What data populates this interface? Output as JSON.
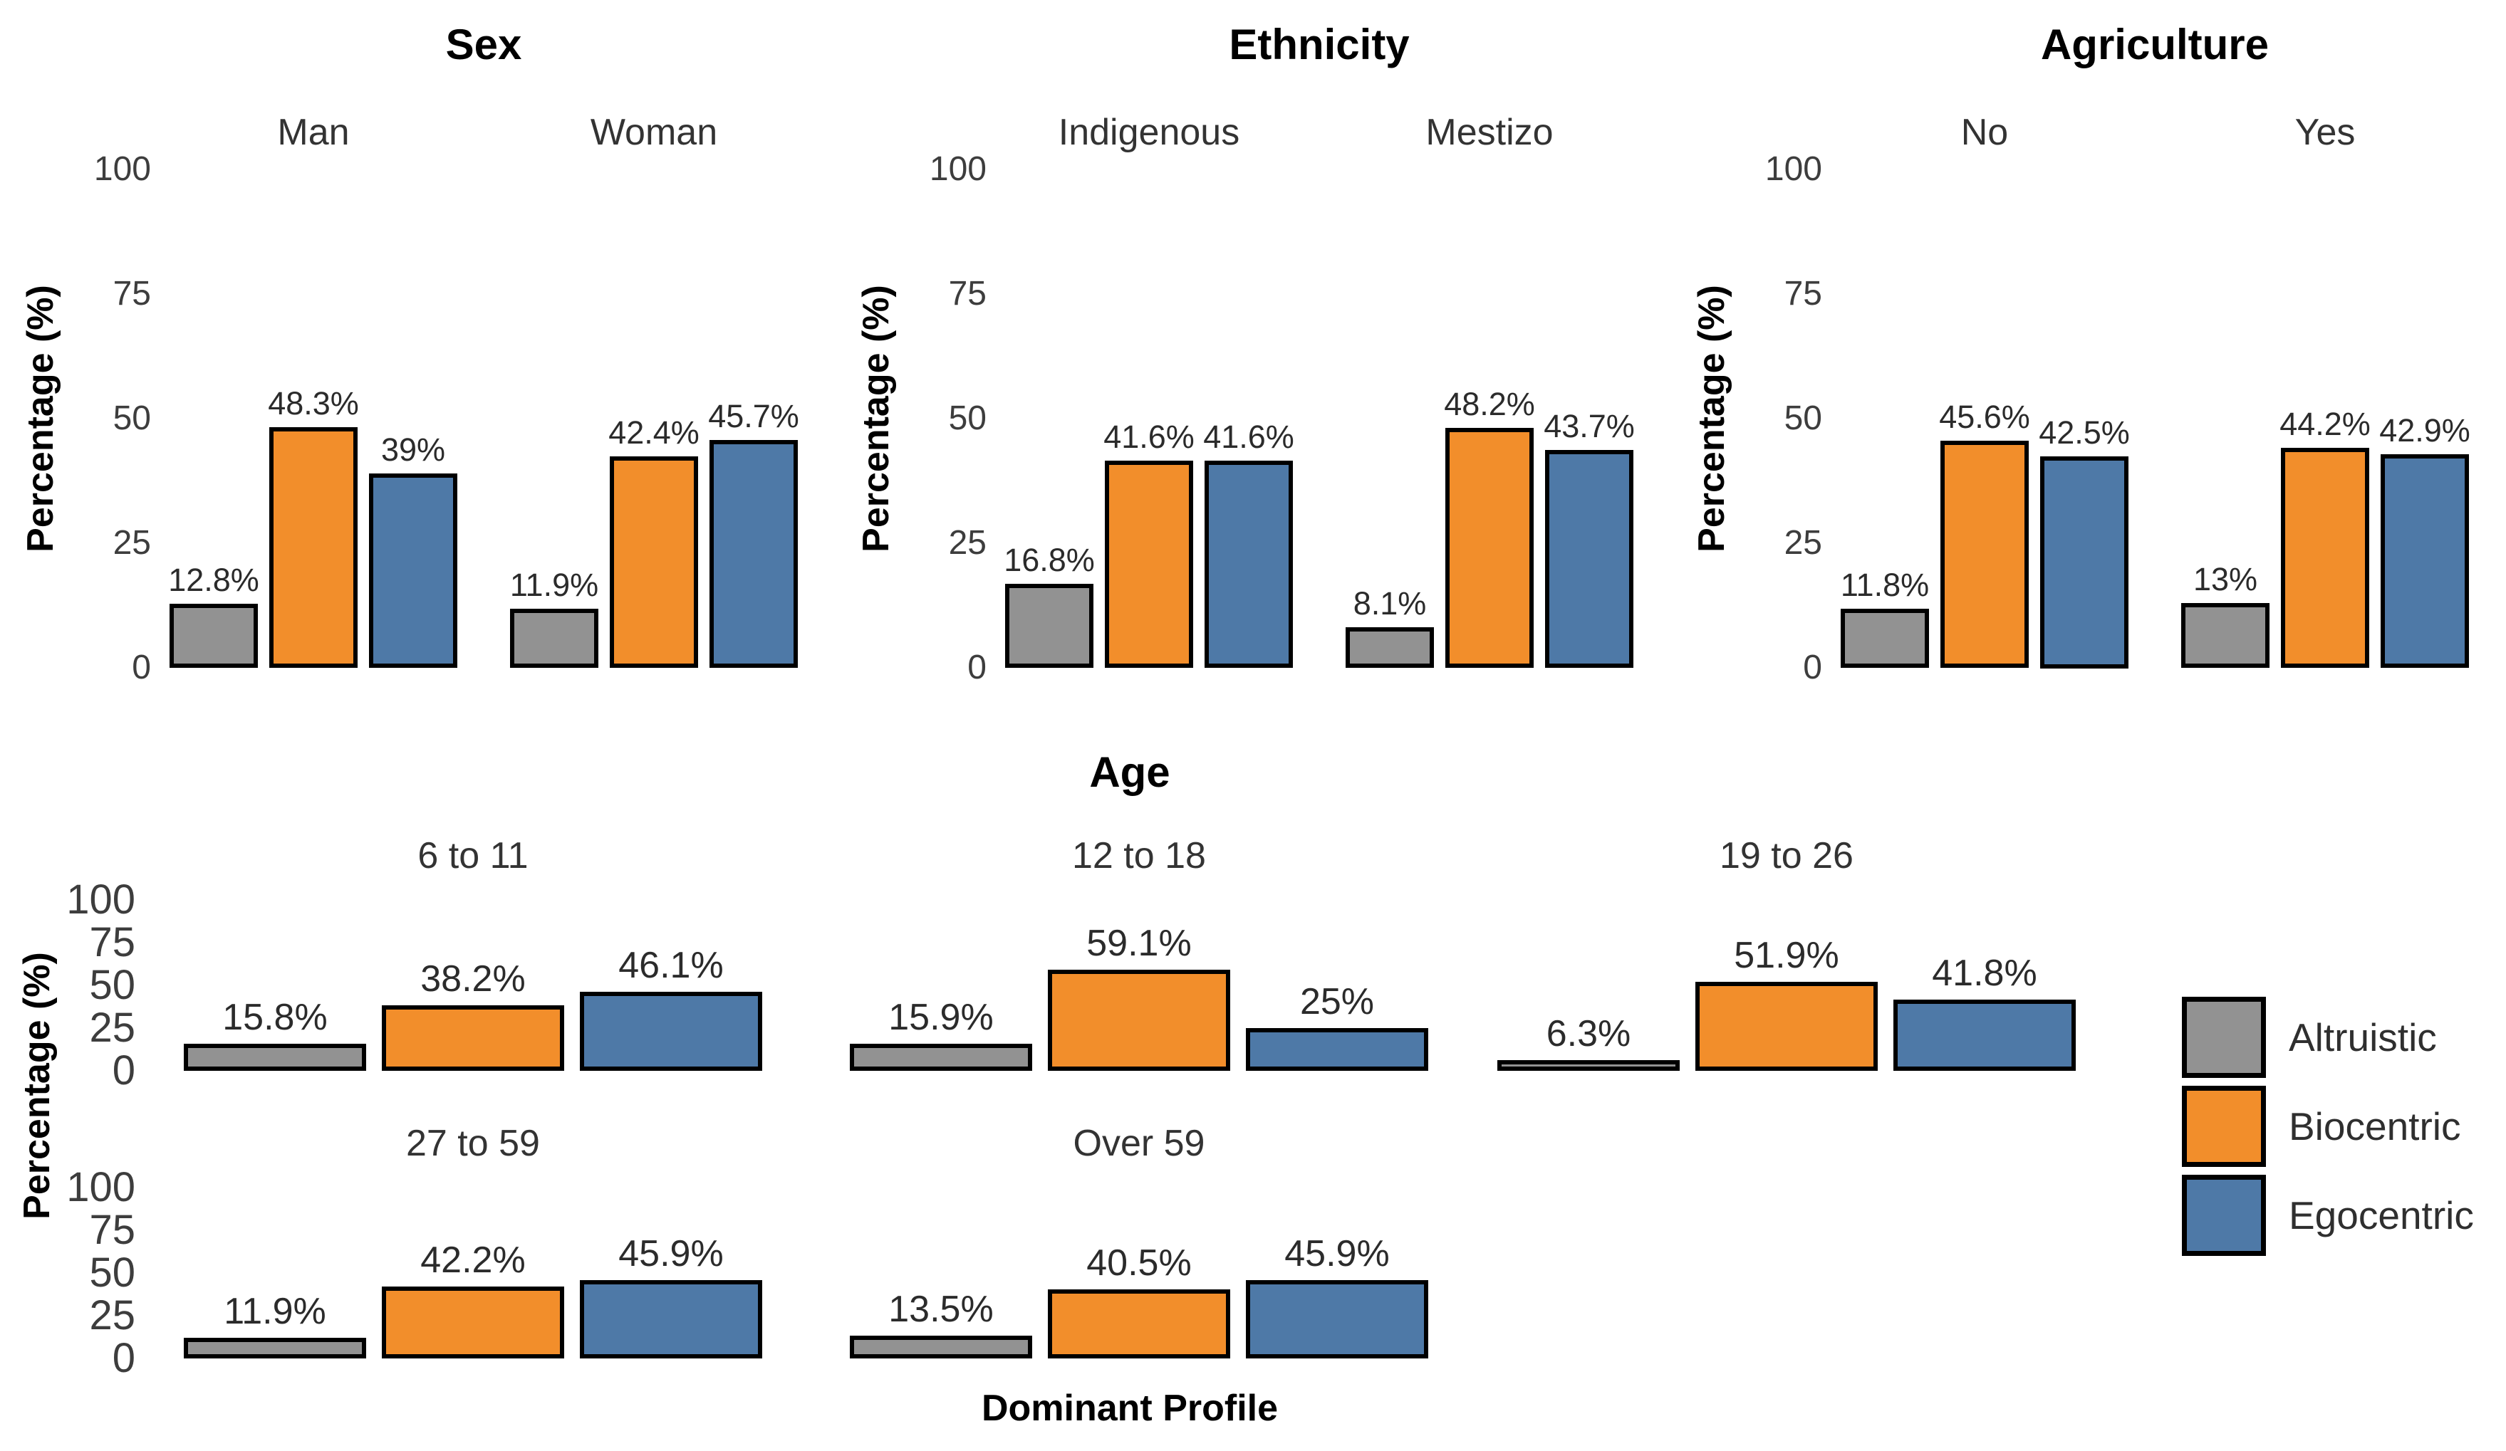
{
  "chart_data": {
    "type": "bar",
    "ylabel": "Percentage (%)",
    "xlabel": "Dominant Profile",
    "ylim": [
      0,
      100
    ],
    "yticks": [
      0,
      25,
      50,
      75,
      100
    ],
    "grid": false,
    "legend_position": "right",
    "series": [
      {
        "name": "Altruistic",
        "color": "#929292"
      },
      {
        "name": "Biocentric",
        "color": "#F28E2B"
      },
      {
        "name": "Egocentric",
        "color": "#4E79A7"
      }
    ],
    "bar_border_color": "#000000",
    "facets": [
      {
        "title": "Sex",
        "groups": [
          {
            "label": "Man",
            "values": [
              12.8,
              48.3,
              39.0
            ],
            "value_labels": [
              "12.8%",
              "48.3%",
              "39%"
            ]
          },
          {
            "label": "Woman",
            "values": [
              11.9,
              42.4,
              45.7
            ],
            "value_labels": [
              "11.9%",
              "42.4%",
              "45.7%"
            ]
          }
        ]
      },
      {
        "title": "Ethnicity",
        "groups": [
          {
            "label": "Indigenous",
            "values": [
              16.8,
              41.6,
              41.6
            ],
            "value_labels": [
              "16.8%",
              "41.6%",
              "41.6%"
            ]
          },
          {
            "label": "Mestizo",
            "values": [
              8.1,
              48.2,
              43.7
            ],
            "value_labels": [
              "8.1%",
              "48.2%",
              "43.7%"
            ]
          }
        ]
      },
      {
        "title": "Agriculture",
        "groups": [
          {
            "label": "No",
            "values": [
              11.8,
              45.6,
              42.5
            ],
            "value_labels": [
              "11.8%",
              "45.6%",
              "42.5%"
            ]
          },
          {
            "label": "Yes",
            "values": [
              13.0,
              44.2,
              42.9
            ],
            "value_labels": [
              "13%",
              "44.2%",
              "42.9%"
            ]
          }
        ]
      },
      {
        "title": "Age",
        "groups": [
          {
            "label": "6 to 11",
            "values": [
              15.8,
              38.2,
              46.1
            ],
            "value_labels": [
              "15.8%",
              "38.2%",
              "46.1%"
            ]
          },
          {
            "label": "12 to 18",
            "values": [
              15.9,
              59.1,
              25.0
            ],
            "value_labels": [
              "15.9%",
              "59.1%",
              "25%"
            ]
          },
          {
            "label": "19 to 26",
            "values": [
              6.3,
              51.9,
              41.8
            ],
            "value_labels": [
              "6.3%",
              "51.9%",
              "41.8%"
            ]
          },
          {
            "label": "27 to 59",
            "values": [
              11.9,
              42.2,
              45.9
            ],
            "value_labels": [
              "11.9%",
              "42.2%",
              "45.9%"
            ]
          },
          {
            "label": "Over 59",
            "values": [
              13.5,
              40.5,
              45.9
            ],
            "value_labels": [
              "13.5%",
              "40.5%",
              "45.9%"
            ]
          }
        ]
      }
    ]
  }
}
